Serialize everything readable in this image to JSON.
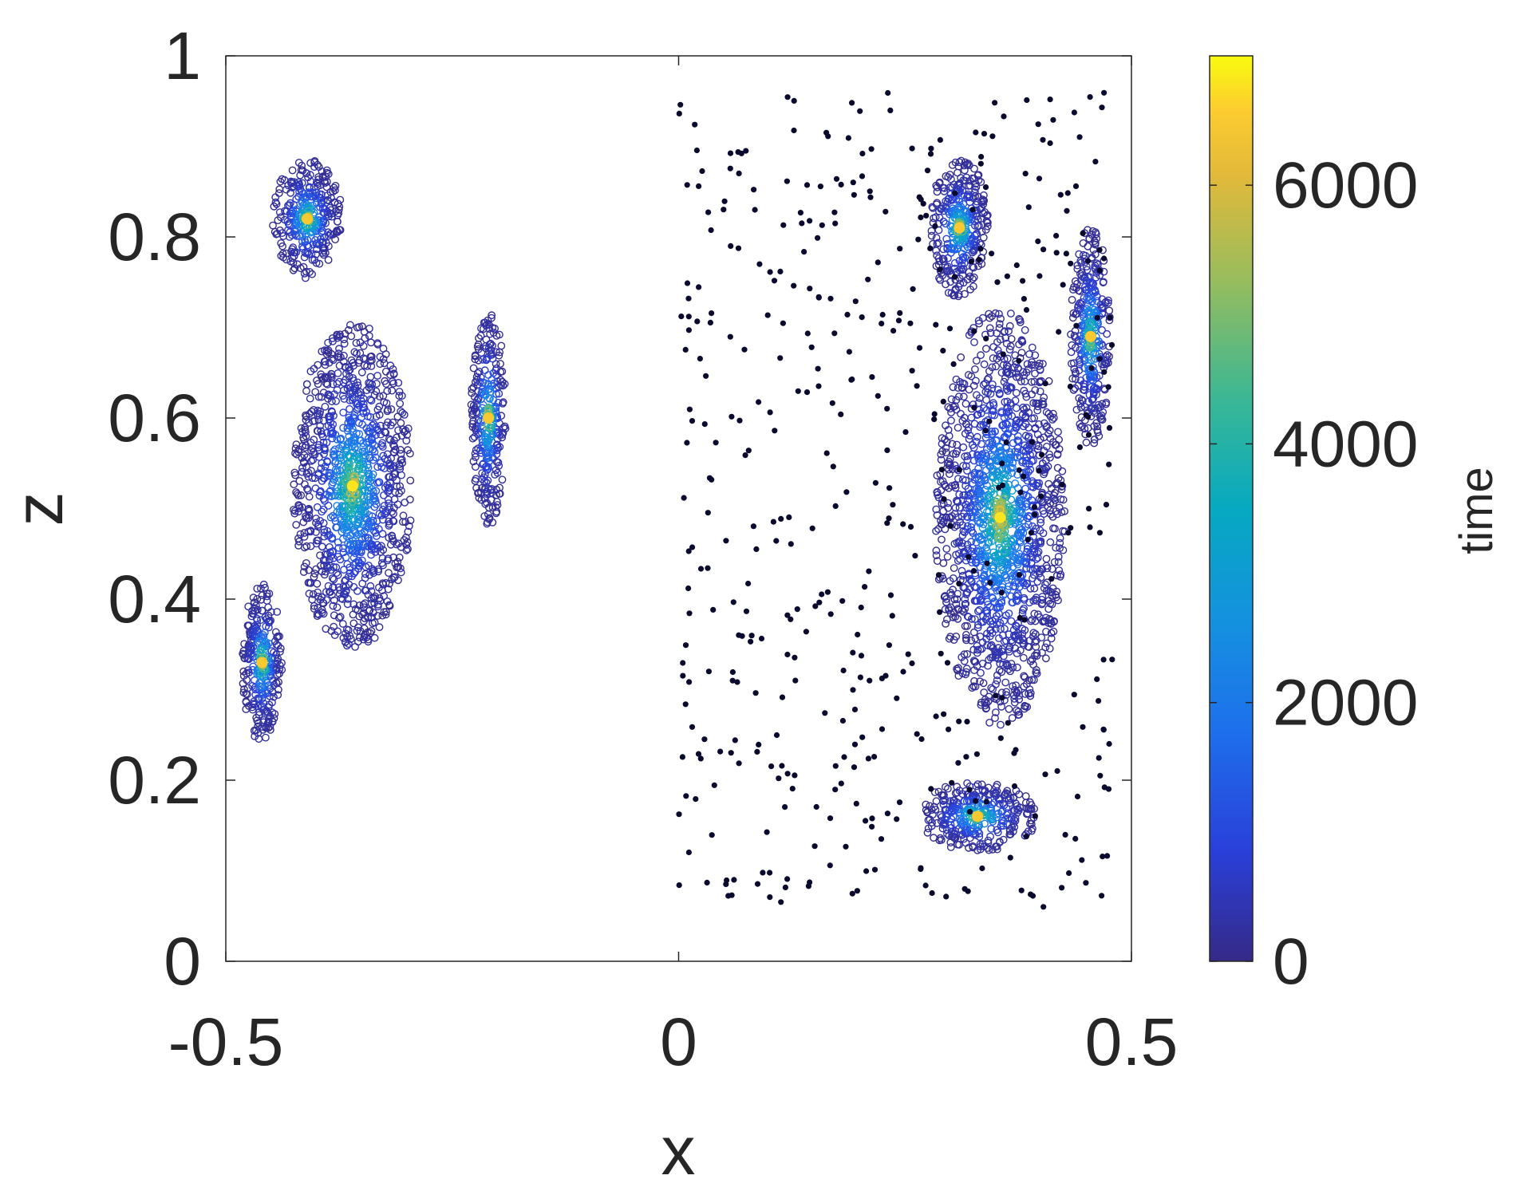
{
  "chart_data": {
    "type": "scatter",
    "title": "",
    "xlabel": "x",
    "ylabel": "z",
    "xlim": [
      -0.5,
      0.5
    ],
    "ylim": [
      0,
      1
    ],
    "x_ticks": [
      -0.5,
      0,
      0.5
    ],
    "x_tick_labels": [
      "-0.5",
      "0",
      "0.5"
    ],
    "y_ticks": [
      0,
      0.2,
      0.4,
      0.6,
      0.8,
      1
    ],
    "y_tick_labels": [
      "0",
      "0.2",
      "0.4",
      "0.6",
      "0.8",
      "1"
    ],
    "grid": false,
    "colorbar": {
      "label": "time",
      "range": [
        0,
        7000
      ],
      "ticks": [
        0,
        2000,
        4000,
        6000
      ],
      "tick_labels": [
        "0",
        "2000",
        "4000",
        "6000"
      ],
      "colormap": "parula"
    },
    "series": [
      {
        "marker": "open-circle",
        "color_by": "time",
        "islands": [
          {
            "center": [
              -0.36,
              0.525
            ],
            "spread": [
              0.12,
              0.33
            ],
            "peak_time": 6800
          },
          {
            "center": [
              -0.21,
              0.6
            ],
            "spread": [
              0.035,
              0.22
            ],
            "peak_time": 6500
          },
          {
            "center": [
              -0.41,
              0.82
            ],
            "spread": [
              0.07,
              0.12
            ],
            "peak_time": 6500
          },
          {
            "center": [
              -0.46,
              0.33
            ],
            "spread": [
              0.04,
              0.16
            ],
            "peak_time": 6500
          },
          {
            "center": [
              0.355,
              0.49
            ],
            "spread": [
              0.13,
              0.42
            ],
            "peak_time": 6800
          },
          {
            "center": [
              0.33,
              0.16
            ],
            "spread": [
              0.12,
              0.07
            ],
            "peak_time": 6500
          },
          {
            "center": [
              0.31,
              0.81
            ],
            "spread": [
              0.06,
              0.14
            ],
            "peak_time": 6500
          },
          {
            "center": [
              0.455,
              0.69
            ],
            "spread": [
              0.04,
              0.22
            ],
            "peak_time": 6500
          }
        ]
      },
      {
        "marker": "filled-dot",
        "color": "#0a0a2e",
        "region_x": [
          0.0,
          0.48
        ],
        "region_z": [
          0.06,
          0.96
        ]
      }
    ],
    "colors": {
      "axes": "#262626",
      "background": "#ffffff"
    }
  }
}
